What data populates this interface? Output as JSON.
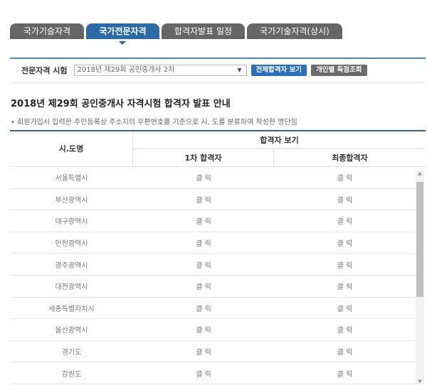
{
  "tabs": [
    {
      "label": "국가기술자격",
      "active": false
    },
    {
      "label": "국가전문자격",
      "active": true
    },
    {
      "label": "합격자발표 일정",
      "active": false
    },
    {
      "label": "국가기술자격(상시)",
      "active": false
    }
  ],
  "filter": {
    "label": "전문자격 시험",
    "selected": "2018년 제29회 공인중개사 2차",
    "view_all": "전체합격자 보기",
    "personal": "개인별 득점조회"
  },
  "heading": "2018년 제29회 공인중개사 자격시험 합격자 발표 안내",
  "note": "• 회원가입시 입력한 주민등록상 주소지의 우편번호를 기준으로 시, 도를 분류하여 작성한 명단임",
  "table": {
    "col_region": "시.도명",
    "group": "합격자 보기",
    "col_first": "1차 합격자",
    "col_final": "최종합격자",
    "rows": [
      {
        "region": "서울특별시",
        "first": "클 릭",
        "final": "클 릭"
      },
      {
        "region": "부산광역시",
        "first": "클 릭",
        "final": "클 릭"
      },
      {
        "region": "대구광역시",
        "first": "클 릭",
        "final": "클 릭"
      },
      {
        "region": "인천광역시",
        "first": "클 릭",
        "final": "클 릭"
      },
      {
        "region": "광주광역시",
        "first": "클 릭",
        "final": "클 릭"
      },
      {
        "region": "대전광역시",
        "first": "클 릭",
        "final": "클 릭"
      },
      {
        "region": "세종특별자치시",
        "first": "클 릭",
        "final": "클 릭"
      },
      {
        "region": "울산광역시",
        "first": "클 릭",
        "final": "클 릭"
      },
      {
        "region": "경기도",
        "first": "클 릭",
        "final": "클 릭"
      },
      {
        "region": "강원도",
        "first": "클 릭",
        "final": "클 릭"
      }
    ]
  },
  "colors": {
    "accent": "#2a6aa8",
    "tab_inactive": "#666666"
  }
}
